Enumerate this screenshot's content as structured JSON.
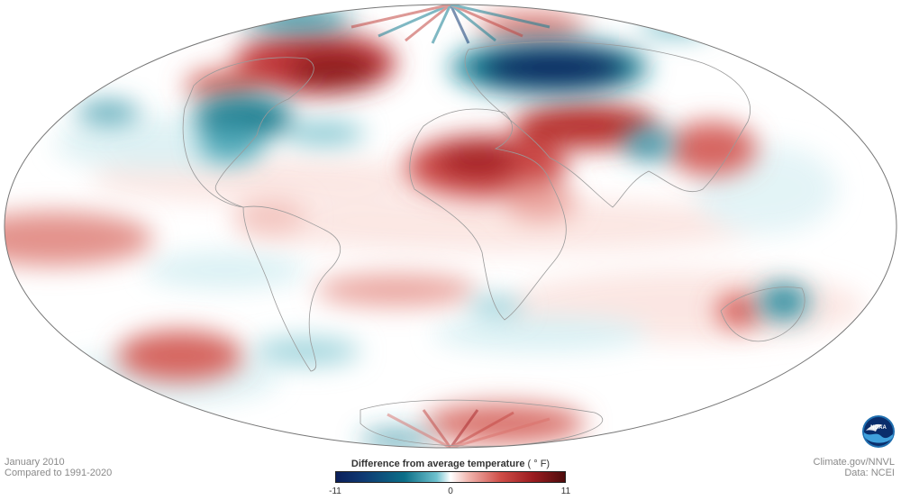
{
  "map": {
    "projection": "Mollweide",
    "colors": {
      "cold_strong": "#0b2a63",
      "cold_mid": "#127a8f",
      "cold_light": "#bfe6ec",
      "neutral": "#ffffff",
      "warm_light": "#f6cfc9",
      "warm_mid": "#d1504b",
      "warm_strong": "#7a1417",
      "coastline": "#9a9a9a",
      "outline": "#777777"
    }
  },
  "footer": {
    "date": "January 2010",
    "baseline": "Compared to 1991-2020",
    "source": "Climate.gov/NNVL",
    "data": "Data: NCEI"
  },
  "legend": {
    "title": "Difference from average temperature",
    "unit": "( ° F)",
    "min_label": "-11",
    "mid_label": "0",
    "max_label": "11",
    "min": -11,
    "max": 11
  },
  "logo": {
    "text": "NOAA"
  }
}
